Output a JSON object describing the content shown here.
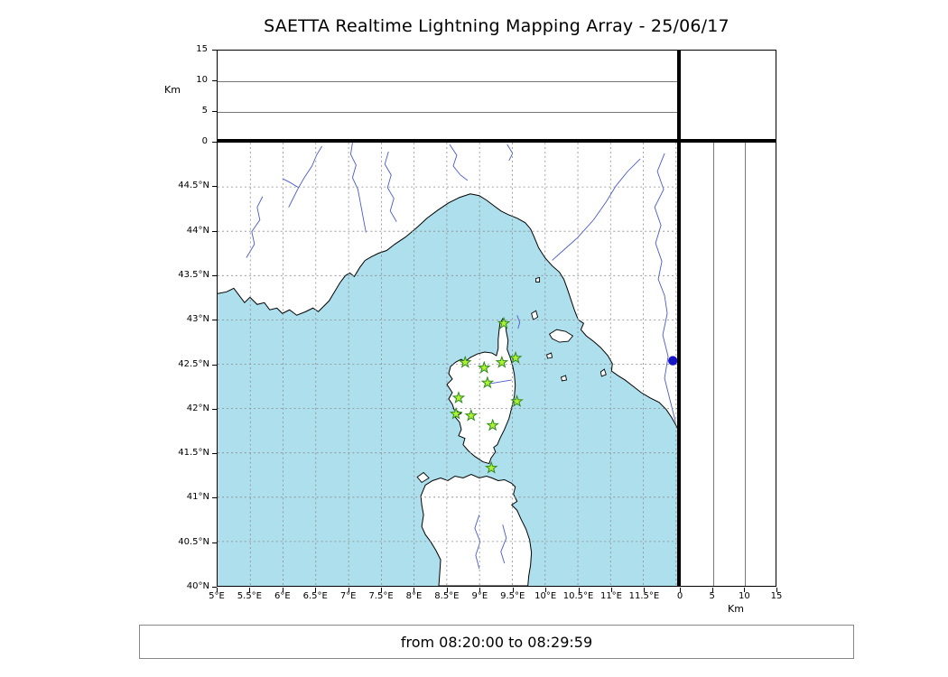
{
  "title": "SAETTA Realtime Lightning Mapping Array - 25/06/17",
  "footer": {
    "text": "from 08:20:00 to 08:29:59"
  },
  "top_axis": {
    "label": "Km",
    "tick_labels": [
      "15",
      "10",
      "5",
      "0"
    ],
    "tick_values": [
      15,
      10,
      5,
      0
    ],
    "gridline_values": [
      5,
      10
    ]
  },
  "right_axis": {
    "label": "Km",
    "tick_labels": [
      "0",
      "5",
      "10",
      "15"
    ],
    "tick_values": [
      0,
      5,
      10,
      15
    ],
    "gridline_values": [
      5,
      10
    ]
  },
  "map": {
    "lat_tick_labels": [
      "44.5°N",
      "44°N",
      "43.5°N",
      "43°N",
      "42.5°N",
      "42°N",
      "41.5°N",
      "41°N",
      "40.5°N",
      "40°N"
    ],
    "lat_tick_values": [
      44.5,
      44,
      43.5,
      43,
      42.5,
      42,
      41.5,
      41,
      40.5,
      40
    ],
    "lon_tick_labels": [
      "5°E",
      "5.5°E",
      "6°E",
      "6.5°E",
      "7°E",
      "7.5°E",
      "8°E",
      "8.5°E",
      "9°E",
      "9.5°E",
      "10°E",
      "10.5°E",
      "11°E",
      "11.5°E"
    ],
    "lon_tick_values": [
      5,
      5.5,
      6,
      6.5,
      7,
      7.5,
      8,
      8.5,
      9,
      9.5,
      10,
      10.5,
      11,
      11.5
    ],
    "lon_range": [
      5,
      12.03
    ],
    "lat_range": [
      40,
      45
    ],
    "grid_step": 0.5,
    "colors": {
      "sea": "#aedfec",
      "land": "#ffffff",
      "coast": "#000000",
      "river": "#4a5ac8",
      "grid": "#8a8a8a"
    }
  },
  "chart_data": {
    "type": "scatter",
    "title": "SAETTA Realtime Lightning Mapping Array - 25/06/17",
    "time_window": {
      "from": "08:20:00",
      "to": "08:29:59"
    },
    "map_extent": {
      "lon": [
        5,
        12.03
      ],
      "lat": [
        40,
        45
      ]
    },
    "altitude_axis_km": {
      "range": [
        0,
        15
      ],
      "ticks": [
        0,
        5,
        10,
        15
      ],
      "label": "Km"
    },
    "stations": [
      {
        "lon": 9.37,
        "lat": 42.96
      },
      {
        "lon": 8.78,
        "lat": 42.52
      },
      {
        "lon": 9.07,
        "lat": 42.46
      },
      {
        "lon": 9.34,
        "lat": 42.52
      },
      {
        "lon": 9.55,
        "lat": 42.57
      },
      {
        "lon": 9.12,
        "lat": 42.29
      },
      {
        "lon": 8.68,
        "lat": 42.12
      },
      {
        "lon": 9.57,
        "lat": 42.08
      },
      {
        "lon": 8.64,
        "lat": 41.94
      },
      {
        "lon": 8.87,
        "lat": 41.92
      },
      {
        "lon": 9.2,
        "lat": 41.81
      },
      {
        "lon": 9.18,
        "lat": 41.33
      }
    ],
    "station_marker": {
      "shape": "star",
      "fill": "#aef032",
      "edge": "#2f8a1e"
    },
    "lightning_points": [
      {
        "lon": 11.95,
        "lat": 42.54,
        "color": "#1616c8"
      }
    ]
  }
}
